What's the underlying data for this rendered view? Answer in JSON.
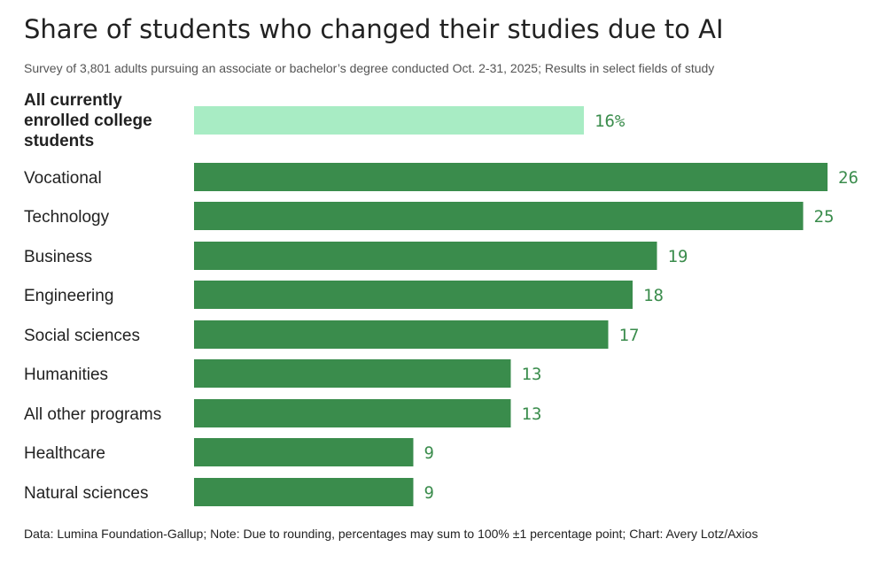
{
  "title": "Share of students who changed their studies due to AI",
  "subtitle": "Survey of 3,801 adults pursuing an associate or bachelor’s degree conducted Oct. 2-31, 2025; Results in select fields of study",
  "footer": "Data: Lumina Foundation-Gallup; Note: Due to rounding, percentages may sum to 100% ±1 percentage point; Chart: Avery Lotz/Axios",
  "chart_data": {
    "type": "bar",
    "orientation": "horizontal",
    "title": "Share of students who changed their studies due to AI",
    "subtitle": "Survey of 3,801 adults pursuing an associate or bachelor’s degree conducted Oct. 2-31, 2025; Results in select fields of study",
    "categories": [
      "All currently enrolled college students",
      "Vocational",
      "Technology",
      "Business",
      "Engineering",
      "Social sciences",
      "Humanities",
      "All other programs",
      "Healthcare",
      "Natural sciences"
    ],
    "values": [
      16,
      26,
      25,
      19,
      18,
      17,
      13,
      13,
      9,
      9
    ],
    "value_labels": [
      "16%",
      "26",
      "25",
      "19",
      "18",
      "17",
      "13",
      "13",
      "9",
      "9"
    ],
    "highlight_index": 0,
    "unit": "%",
    "xlim": [
      0,
      26
    ],
    "grid": false,
    "colors": {
      "highlight_bar": "#a8ecc4",
      "bar": "#3a8c4c",
      "value_label": "#3a8c4c",
      "category_label": "#222222"
    }
  }
}
